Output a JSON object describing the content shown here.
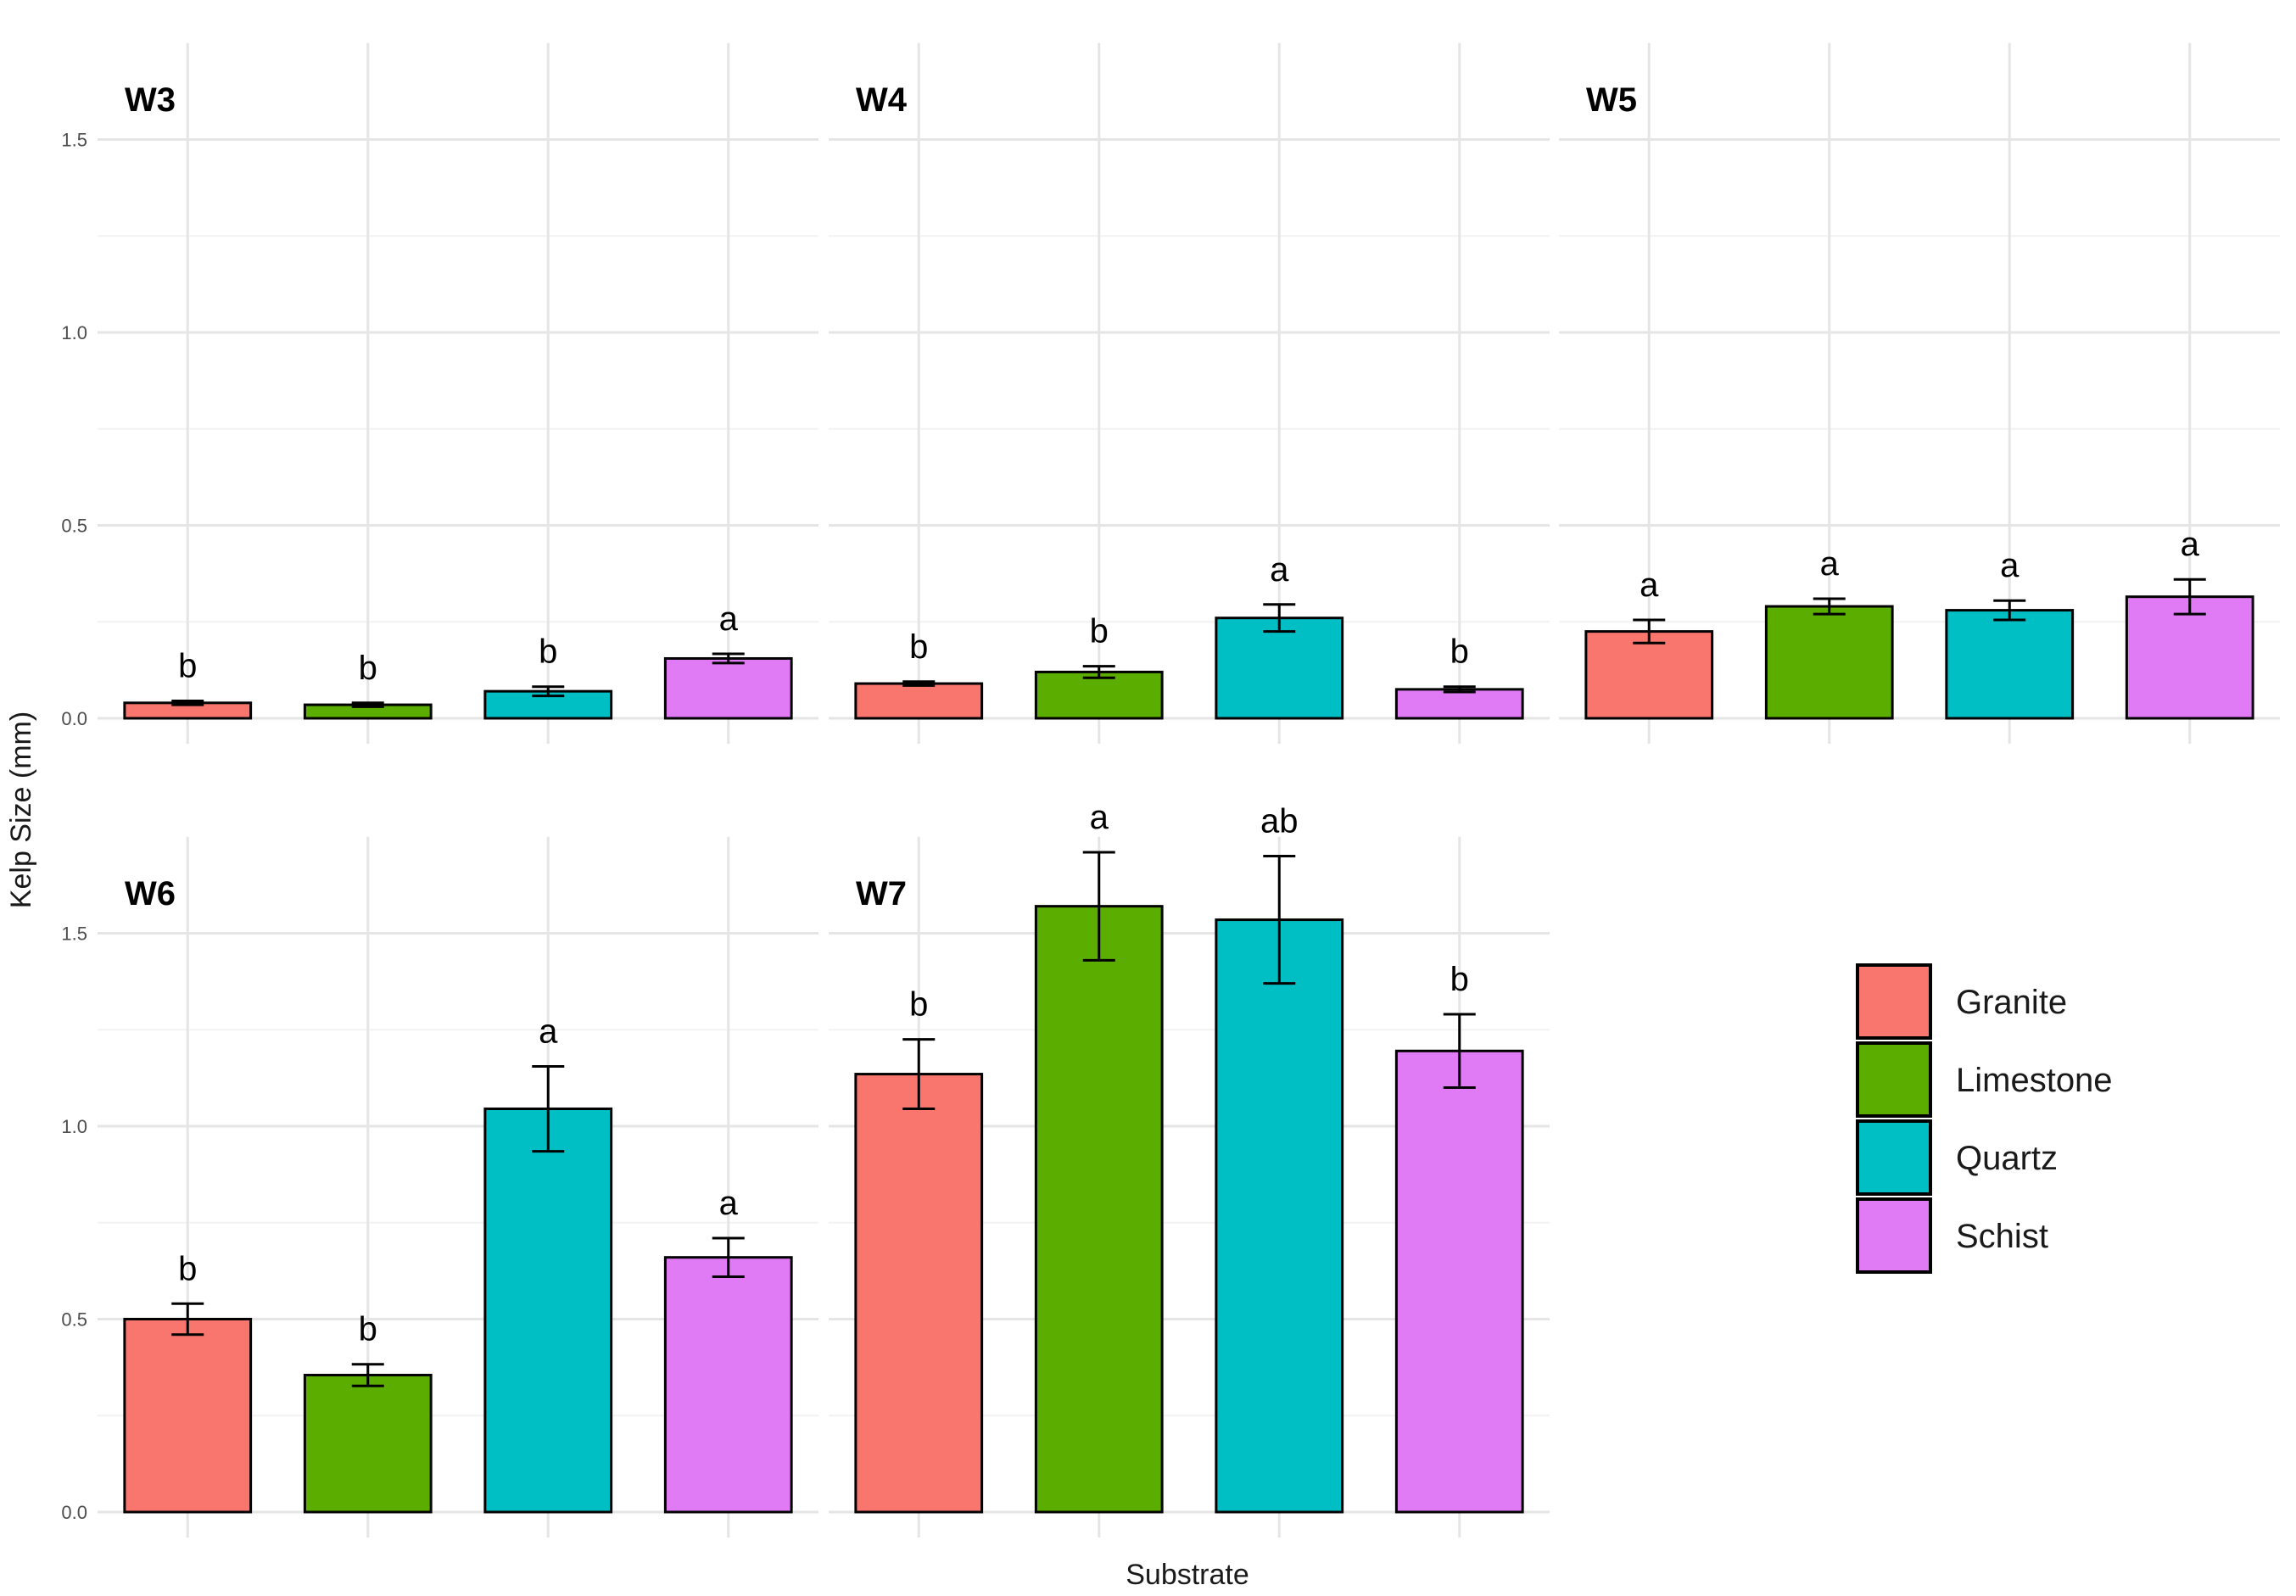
{
  "chart_data": {
    "type": "bar",
    "xlabel": "Substrate",
    "ylabel": "Kelp Size (mm)",
    "ylim": [
      0,
      1.75
    ],
    "yticks": [
      0.0,
      0.5,
      1.0,
      1.5
    ],
    "ytick_labels": [
      "0.0",
      "0.5",
      "1.0",
      "1.5"
    ],
    "grid": true,
    "legend_position": "right",
    "categories": [
      "Granite",
      "Limestone",
      "Quartz",
      "Schist"
    ],
    "colors": {
      "Granite": "#F8766D",
      "Limestone": "#5BAE00",
      "Quartz": "#00BFC4",
      "Schist": "#E07BF5"
    },
    "facets": [
      {
        "title": "W3",
        "values": [
          0.04,
          0.035,
          0.07,
          0.155
        ],
        "errors": [
          0.005,
          0.005,
          0.012,
          0.012
        ],
        "letters": [
          "b",
          "b",
          "b",
          "a"
        ]
      },
      {
        "title": "W4",
        "values": [
          0.09,
          0.12,
          0.26,
          0.075
        ],
        "errors": [
          0.005,
          0.015,
          0.035,
          0.007
        ],
        "letters": [
          "b",
          "b",
          "a",
          "b"
        ]
      },
      {
        "title": "W5",
        "values": [
          0.225,
          0.29,
          0.28,
          0.315
        ],
        "errors": [
          0.03,
          0.02,
          0.025,
          0.045
        ],
        "letters": [
          "a",
          "a",
          "a",
          "a"
        ]
      },
      {
        "title": "W6",
        "values": [
          0.5,
          0.355,
          1.045,
          0.66
        ],
        "errors": [
          0.04,
          0.028,
          0.11,
          0.05
        ],
        "letters": [
          "b",
          "b",
          "a",
          "a"
        ]
      },
      {
        "title": "W7",
        "values": [
          1.135,
          1.57,
          1.535,
          1.195
        ],
        "errors": [
          0.09,
          0.14,
          0.165,
          0.095
        ],
        "letters": [
          "b",
          "a",
          "ab",
          "b"
        ]
      }
    ]
  }
}
